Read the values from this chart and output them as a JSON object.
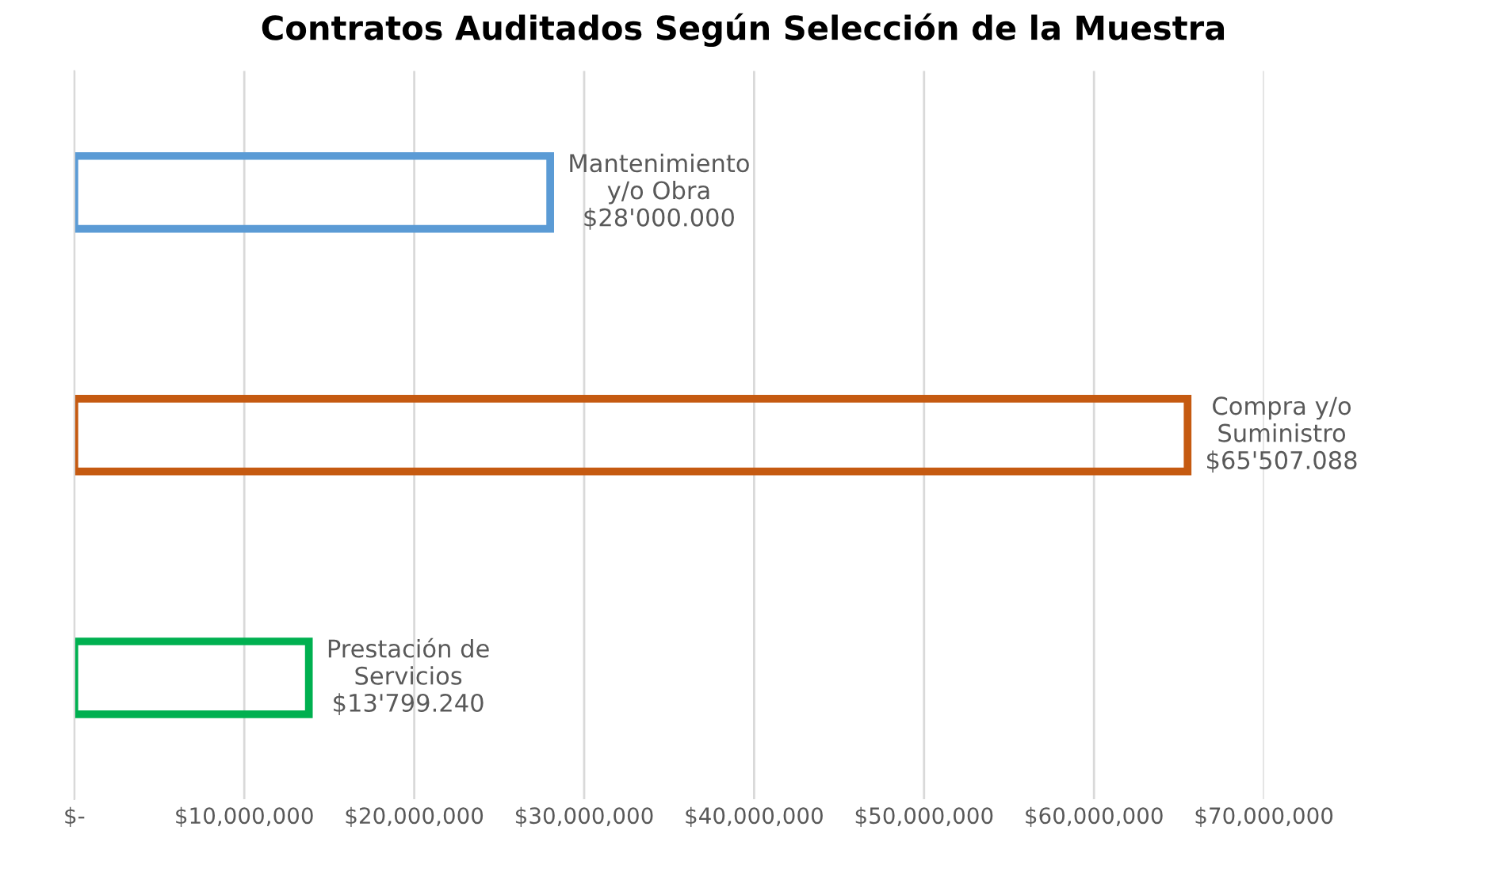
{
  "chart_data": {
    "type": "bar",
    "orientation": "horizontal",
    "title": "Contratos Auditados Según Selección de la Muestra",
    "categories": [
      null,
      null,
      null
    ],
    "values": [
      28000000,
      65507088,
      13799240
    ],
    "colors": [
      "#5b9bd5",
      "#c55a11",
      "#00b050"
    ],
    "value_labels": [
      "Mantenimiento\ny/o Obra\n$28'000.000",
      "Compra y/o\nSuministro\n$65'507.088",
      "Prestación de\nServicios\n$13'799.240"
    ],
    "xlim": [
      0,
      70000000
    ],
    "xticks": [
      {
        "value": 0,
        "label": "$-"
      },
      {
        "value": 10000000,
        "label": "$10,000,000"
      },
      {
        "value": 20000000,
        "label": "$20,000,000"
      },
      {
        "value": 30000000,
        "label": "$30,000,000"
      },
      {
        "value": 40000000,
        "label": "$40,000,000"
      },
      {
        "value": 50000000,
        "label": "$50,000,000"
      },
      {
        "value": 60000000,
        "label": "$60,000,000"
      },
      {
        "value": 70000000,
        "label": "$70,000,000"
      }
    ],
    "grid": "x"
  }
}
